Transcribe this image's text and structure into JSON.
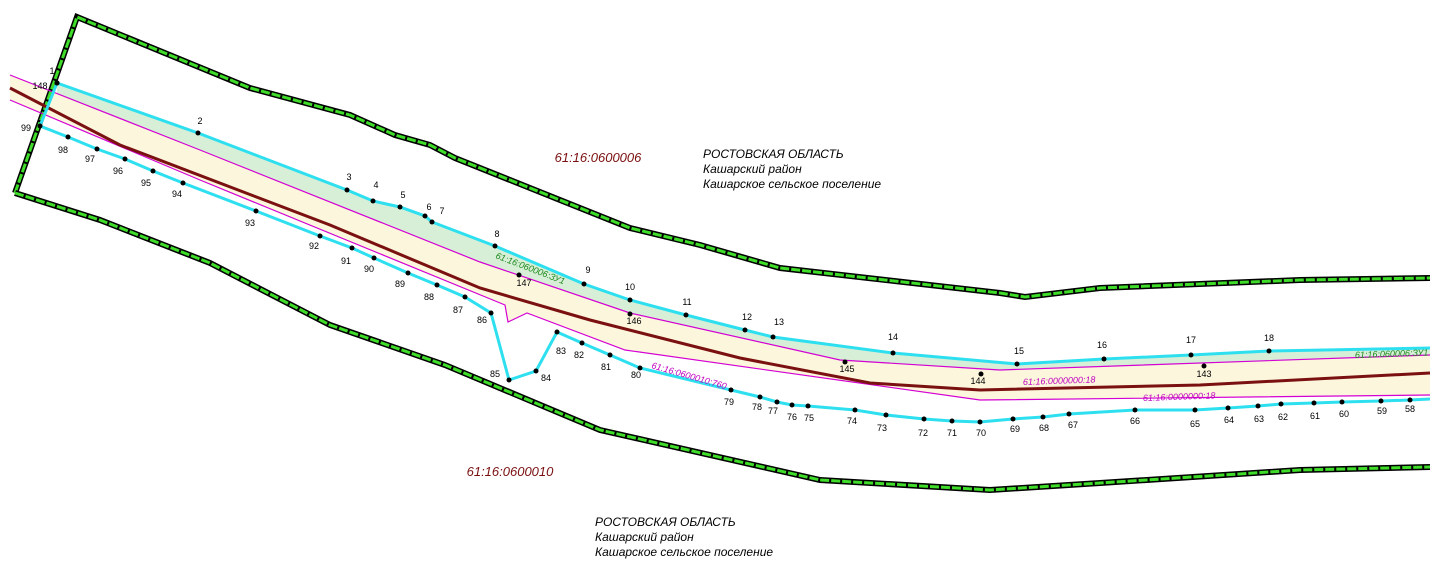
{
  "points": [
    "1",
    "148",
    "2",
    "3",
    "4",
    "5",
    "6",
    "7",
    "8",
    "9",
    "10",
    "11",
    "12",
    "13",
    "14",
    "15",
    "16",
    "17",
    "18",
    "99",
    "98",
    "97",
    "96",
    "95",
    "94",
    "93",
    "92",
    "91",
    "90",
    "89",
    "88",
    "87",
    "86",
    "85",
    "84",
    "83",
    "82",
    "81",
    "80",
    "79",
    "78",
    "77",
    "76",
    "75",
    "74",
    "73",
    "72",
    "71",
    "70",
    "69",
    "68",
    "67",
    "66",
    "65",
    "64",
    "63",
    "62",
    "61",
    "60",
    "59",
    "58",
    "147",
    "146",
    "145",
    "144",
    "143"
  ],
  "blocks": [
    "61:16:0600006",
    "61:16:0600010"
  ],
  "regions": [
    {
      "region": "РОСТОВСКАЯ ОБЛАСТЬ",
      "district": "Кашарский район",
      "settlement": "Кашарское сельское поселение"
    },
    {
      "region": "РОСТОВСКАЯ ОБЛАСТЬ",
      "district": "Кашарский район",
      "settlement": "Кашарское сельское поселение"
    }
  ],
  "parcels": [
    "61:16:060006:ЗУ1",
    "61:16:060006:ЗУ1",
    "61:16:0600010:760",
    "61:16:0000000:18",
    "61:16:0000000:18"
  ]
}
